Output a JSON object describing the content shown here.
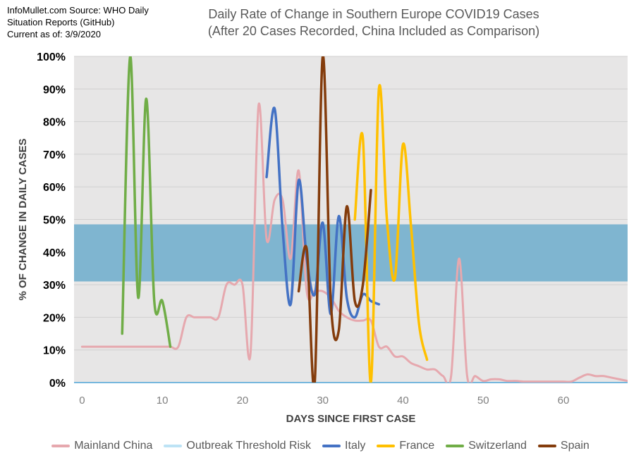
{
  "source": {
    "lines": [
      "InfoMullet.com Source: WHO Daily",
      "Situation Reports (GitHub)",
      "Current as of: 3/9/2020"
    ]
  },
  "chart_data": {
    "type": "line",
    "title": [
      "Daily Rate of Change in Southern Europe COVID19 Cases",
      "(After 20 Cases Recorded, China Included as Comparison)"
    ],
    "xlabel": "DAYS SINCE FIRST CASE",
    "ylabel": "% OF CHANGE IN DAILY CASES",
    "xlim": [
      -1,
      68
    ],
    "ylim": [
      0,
      100
    ],
    "x_ticks": [
      0,
      10,
      20,
      30,
      40,
      50,
      60
    ],
    "y_ticks": [
      "0%",
      "10%",
      "20%",
      "30%",
      "40%",
      "50%",
      "60%",
      "70%",
      "80%",
      "90%",
      "100%"
    ],
    "band": {
      "name": "Outbreak Threshold Risk",
      "y_range": [
        31,
        48.5
      ],
      "color": "#7fb5d0"
    },
    "legend_position": "bottom",
    "series": [
      {
        "name": "Mainland China",
        "color": "#e6a8ae",
        "x": [
          0,
          1,
          2,
          3,
          4,
          5,
          6,
          7,
          8,
          9,
          10,
          11,
          12,
          13,
          14,
          15,
          16,
          17,
          18,
          19,
          20,
          21,
          22,
          23,
          24,
          25,
          26,
          27,
          28,
          29,
          30,
          31,
          32,
          33,
          34,
          35,
          36,
          37,
          38,
          39,
          40,
          41,
          42,
          43,
          44,
          45,
          46,
          47,
          48,
          49,
          50,
          51,
          52,
          53,
          54,
          55,
          56,
          57,
          58,
          59,
          60,
          61,
          62,
          63,
          64,
          65,
          66,
          67,
          68
        ],
        "y": [
          11,
          11,
          11,
          11,
          11,
          11,
          11,
          11,
          11,
          11,
          11,
          11,
          11,
          20,
          20,
          20,
          20,
          20,
          30,
          30,
          30,
          9,
          85,
          44,
          56,
          56,
          38,
          65,
          28,
          28,
          28,
          26,
          22,
          20,
          19,
          19,
          19,
          11,
          11,
          8,
          8,
          6,
          5,
          4,
          4,
          2,
          2,
          38,
          2,
          2,
          0.5,
          1,
          1,
          0.5,
          0.5,
          0.3,
          0.3,
          0.3,
          0.3,
          0.3,
          0.3,
          0.3,
          1.5,
          2.5,
          2,
          2,
          1.5,
          1,
          0.5
        ]
      },
      {
        "name": "Outbreak Threshold Risk",
        "color": "#bde3f5",
        "band": true
      },
      {
        "name": "Italy",
        "color": "#4472c4",
        "x": [
          23,
          24,
          25,
          26,
          27,
          28,
          29,
          30,
          31,
          32,
          33,
          34,
          35,
          36,
          37
        ],
        "y": [
          63,
          84,
          47,
          24,
          62,
          38,
          27,
          49,
          21,
          51,
          26,
          20,
          27,
          25,
          24
        ]
      },
      {
        "name": "France",
        "color": "#ffc000",
        "x": [
          34,
          35,
          36,
          37,
          38,
          39,
          40,
          41,
          42,
          43
        ],
        "y": [
          50,
          75,
          0,
          90,
          50,
          32,
          73,
          48,
          18,
          7
        ]
      },
      {
        "name": "Switzerland",
        "color": "#70ad47",
        "x": [
          5,
          6,
          7,
          8,
          9,
          10,
          11
        ],
        "y": [
          15,
          100,
          26,
          87,
          25,
          25,
          11
        ]
      },
      {
        "name": "Spain",
        "color": "#843c0c",
        "x": [
          27,
          28,
          29,
          30,
          31,
          32,
          33,
          34,
          35,
          36
        ],
        "y": [
          28,
          41,
          0,
          100,
          25,
          16,
          54,
          25,
          30,
          59
        ]
      }
    ]
  }
}
